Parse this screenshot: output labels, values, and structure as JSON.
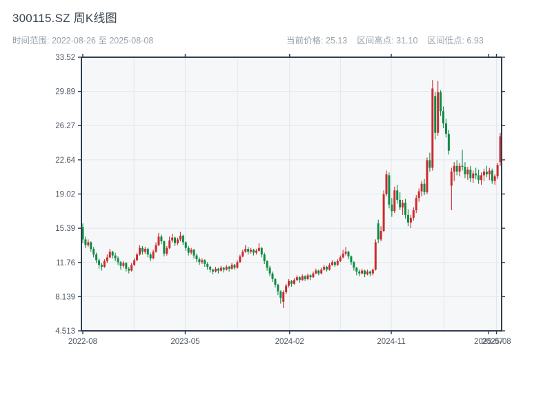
{
  "header": {
    "title": "300115.SZ 周K线图",
    "time_range": "时间范围: 2022-08-26 至 2025-08-08",
    "stats": {
      "current": "当前价格: 25.13",
      "high": "区间高点: 31.10",
      "low": "区间低点: 6.93"
    }
  },
  "chart_data": {
    "type": "candlestick",
    "title": "300115.SZ 周K线图",
    "frequency": "weekly",
    "date_start": "2022-08-26",
    "date_end": "2025-08-08",
    "current_price": 25.13,
    "range_high": 31.1,
    "range_low": 6.93,
    "legend_position": "none",
    "grid": true,
    "ylim": [
      4.513,
      33.52
    ],
    "y_ticks": [
      {
        "label": "33.52",
        "v": 33.52
      },
      {
        "label": "29.89",
        "v": 29.89
      },
      {
        "label": "26.27",
        "v": 26.27
      },
      {
        "label": "22.64",
        "v": 22.64
      },
      {
        "label": "19.02",
        "v": 19.02
      },
      {
        "label": "15.39",
        "v": 15.39
      },
      {
        "label": "11.76",
        "v": 11.76
      },
      {
        "label": "8.139",
        "v": 8.139
      },
      {
        "label": "4.513",
        "v": 4.513
      }
    ],
    "x_ticks": [
      {
        "label": "2022-08",
        "i": 0
      },
      {
        "label": "2023-05",
        "i": 37.8
      },
      {
        "label": "2024-02",
        "i": 76.3
      },
      {
        "label": "2024-11",
        "i": 113.8
      },
      {
        "label": "2025-07",
        "i": 149.7
      },
      {
        "label": "2025-08",
        "i": 152.6
      }
    ],
    "x_gridlines": [
      18.9,
      37.8,
      57.05,
      76.3,
      95.05,
      113.8,
      133.2,
      152.6
    ],
    "colors": {
      "up": "#cb2b2f",
      "down": "#0f8b43",
      "plot_bg": "#f5f7f9",
      "grid": "#e3e7eb",
      "spine": "#2e3d4f",
      "tick_label": "#4f5b68"
    },
    "candles": [
      [
        15.5,
        15.9,
        13.8,
        14.2
      ],
      [
        14.2,
        14.5,
        13.3,
        13.6
      ],
      [
        13.6,
        14.2,
        13.4,
        13.9
      ],
      [
        13.9,
        14.0,
        12.9,
        13.2
      ],
      [
        13.2,
        13.4,
        12.3,
        12.6
      ],
      [
        12.6,
        12.8,
        11.7,
        12.0
      ],
      [
        12.0,
        12.2,
        11.1,
        11.5
      ],
      [
        11.5,
        11.7,
        10.9,
        11.3
      ],
      [
        11.3,
        12.1,
        11.2,
        11.9
      ],
      [
        11.9,
        12.6,
        11.7,
        12.3
      ],
      [
        12.3,
        13.2,
        12.2,
        12.9
      ],
      [
        12.9,
        13.0,
        12.2,
        12.5
      ],
      [
        12.5,
        12.8,
        11.9,
        12.2
      ],
      [
        12.2,
        12.4,
        11.5,
        11.8
      ],
      [
        11.8,
        11.9,
        11.0,
        11.4
      ],
      [
        11.4,
        11.9,
        11.2,
        11.7
      ],
      [
        11.7,
        11.8,
        10.8,
        11.1
      ],
      [
        11.1,
        11.3,
        10.6,
        10.9
      ],
      [
        10.9,
        11.7,
        10.8,
        11.5
      ],
      [
        11.5,
        12.2,
        11.4,
        12.0
      ],
      [
        12.0,
        12.8,
        11.9,
        12.6
      ],
      [
        12.6,
        13.6,
        12.5,
        13.3
      ],
      [
        13.3,
        13.5,
        12.6,
        12.9
      ],
      [
        12.9,
        13.4,
        12.7,
        13.2
      ],
      [
        13.2,
        13.3,
        12.3,
        12.6
      ],
      [
        12.6,
        12.8,
        11.9,
        12.2
      ],
      [
        12.2,
        13.1,
        12.1,
        12.9
      ],
      [
        12.9,
        13.9,
        12.8,
        13.6
      ],
      [
        13.6,
        14.9,
        13.5,
        14.5
      ],
      [
        14.5,
        14.7,
        13.7,
        14.0
      ],
      [
        14.0,
        14.1,
        12.4,
        12.7
      ],
      [
        12.7,
        13.5,
        12.5,
        13.3
      ],
      [
        13.3,
        14.5,
        13.2,
        14.1
      ],
      [
        14.1,
        14.8,
        13.9,
        14.4
      ],
      [
        14.4,
        14.5,
        13.5,
        13.8
      ],
      [
        13.8,
        14.4,
        13.6,
        14.2
      ],
      [
        14.2,
        15.0,
        14.0,
        14.6
      ],
      [
        14.6,
        14.7,
        13.6,
        13.9
      ],
      [
        13.9,
        14.0,
        13.0,
        13.3
      ],
      [
        13.3,
        13.5,
        12.5,
        12.8
      ],
      [
        12.8,
        13.3,
        12.6,
        13.1
      ],
      [
        13.1,
        13.2,
        12.2,
        12.5
      ],
      [
        12.5,
        12.7,
        11.8,
        12.1
      ],
      [
        12.1,
        12.3,
        11.5,
        11.8
      ],
      [
        11.8,
        12.2,
        11.6,
        12.0
      ],
      [
        12.0,
        12.1,
        11.3,
        11.6
      ],
      [
        11.6,
        11.8,
        11.0,
        11.3
      ],
      [
        11.3,
        11.4,
        10.7,
        11.0
      ],
      [
        11.0,
        11.1,
        10.5,
        10.8
      ],
      [
        10.8,
        11.3,
        10.7,
        11.1
      ],
      [
        11.1,
        11.2,
        10.6,
        10.9
      ],
      [
        10.9,
        11.4,
        10.8,
        11.2
      ],
      [
        11.2,
        11.3,
        10.7,
        11.0
      ],
      [
        11.0,
        11.5,
        10.9,
        11.3
      ],
      [
        11.3,
        11.4,
        10.8,
        11.1
      ],
      [
        11.1,
        11.7,
        11.0,
        11.5
      ],
      [
        11.5,
        11.6,
        11.0,
        11.2
      ],
      [
        11.2,
        12.0,
        11.1,
        11.8
      ],
      [
        11.8,
        12.6,
        11.7,
        12.4
      ],
      [
        12.4,
        13.1,
        12.3,
        12.9
      ],
      [
        12.9,
        13.6,
        12.8,
        13.2
      ],
      [
        13.2,
        13.4,
        12.6,
        12.9
      ],
      [
        12.9,
        13.3,
        12.7,
        13.1
      ],
      [
        13.1,
        13.2,
        12.5,
        12.8
      ],
      [
        12.8,
        13.2,
        12.6,
        13.0
      ],
      [
        13.0,
        13.8,
        12.9,
        13.3
      ],
      [
        13.3,
        13.4,
        12.3,
        12.6
      ],
      [
        12.6,
        12.8,
        11.6,
        11.9
      ],
      [
        11.9,
        12.0,
        10.9,
        11.2
      ],
      [
        11.2,
        11.4,
        10.3,
        10.6
      ],
      [
        10.6,
        10.8,
        9.7,
        10.0
      ],
      [
        10.0,
        10.1,
        9.1,
        9.4
      ],
      [
        9.4,
        9.5,
        8.3,
        8.7
      ],
      [
        8.7,
        8.8,
        7.4,
        8.0
      ],
      [
        7.6,
        8.8,
        6.93,
        8.6
      ],
      [
        8.6,
        9.5,
        8.4,
        9.3
      ],
      [
        9.3,
        10.0,
        9.1,
        9.8
      ],
      [
        9.8,
        9.9,
        9.2,
        9.5
      ],
      [
        9.5,
        10.1,
        9.4,
        9.9
      ],
      [
        9.9,
        10.4,
        9.8,
        10.2
      ],
      [
        10.2,
        10.3,
        9.6,
        9.9
      ],
      [
        9.9,
        10.5,
        9.8,
        10.3
      ],
      [
        10.3,
        10.4,
        9.8,
        10.0
      ],
      [
        10.0,
        10.6,
        9.9,
        10.4
      ],
      [
        10.4,
        10.5,
        9.9,
        10.2
      ],
      [
        10.2,
        10.8,
        10.1,
        10.6
      ],
      [
        10.6,
        11.1,
        10.5,
        10.9
      ],
      [
        10.9,
        11.0,
        10.4,
        10.6
      ],
      [
        10.6,
        11.2,
        10.5,
        11.0
      ],
      [
        11.0,
        11.5,
        10.9,
        11.3
      ],
      [
        11.3,
        11.4,
        10.8,
        11.0
      ],
      [
        11.0,
        11.7,
        10.9,
        11.5
      ],
      [
        11.5,
        12.0,
        11.4,
        11.8
      ],
      [
        11.8,
        11.9,
        11.3,
        11.5
      ],
      [
        11.5,
        12.1,
        11.4,
        11.9
      ],
      [
        11.9,
        12.5,
        11.8,
        12.3
      ],
      [
        12.3,
        13.1,
        12.2,
        12.7
      ],
      [
        12.7,
        13.4,
        12.5,
        12.9
      ],
      [
        12.9,
        13.0,
        12.1,
        12.4
      ],
      [
        12.4,
        12.5,
        11.5,
        11.8
      ],
      [
        11.8,
        11.9,
        10.9,
        11.2
      ],
      [
        11.2,
        11.3,
        10.4,
        10.8
      ],
      [
        10.8,
        11.0,
        10.3,
        10.6
      ],
      [
        10.6,
        11.1,
        10.5,
        10.9
      ],
      [
        10.9,
        11.0,
        10.2,
        10.5
      ],
      [
        10.5,
        11.0,
        10.4,
        10.8
      ],
      [
        10.8,
        10.9,
        10.3,
        10.6
      ],
      [
        10.6,
        11.1,
        10.4,
        11.0
      ],
      [
        11.0,
        14.2,
        10.9,
        13.9
      ],
      [
        15.9,
        16.3,
        13.8,
        14.2
      ],
      [
        14.2,
        15.6,
        14.0,
        15.1
      ],
      [
        15.1,
        19.4,
        15.0,
        19.0
      ],
      [
        19.0,
        21.5,
        18.8,
        21.1
      ],
      [
        21.0,
        21.3,
        17.5,
        17.9
      ],
      [
        17.9,
        18.6,
        16.6,
        17.2
      ],
      [
        17.2,
        19.8,
        17.0,
        19.4
      ],
      [
        19.4,
        20.0,
        18.0,
        18.4
      ],
      [
        18.4,
        19.2,
        17.3,
        17.6
      ],
      [
        17.6,
        18.4,
        16.8,
        18.1
      ],
      [
        18.1,
        18.5,
        16.4,
        16.8
      ],
      [
        16.8,
        17.4,
        15.6,
        16.0
      ],
      [
        16.0,
        16.8,
        15.4,
        16.5
      ],
      [
        16.5,
        17.6,
        16.2,
        17.3
      ],
      [
        17.3,
        18.9,
        17.0,
        18.6
      ],
      [
        18.6,
        19.6,
        18.2,
        19.3
      ],
      [
        19.3,
        20.4,
        18.8,
        20.1
      ],
      [
        20.1,
        20.6,
        18.9,
        19.2
      ],
      [
        19.2,
        22.9,
        19.0,
        22.6
      ],
      [
        22.6,
        23.4,
        21.4,
        21.8
      ],
      [
        21.8,
        31.1,
        21.5,
        30.2
      ],
      [
        29.4,
        29.8,
        24.8,
        25.5
      ],
      [
        25.5,
        31.0,
        25.2,
        29.8
      ],
      [
        29.8,
        30.0,
        27.3,
        27.8
      ],
      [
        27.8,
        28.3,
        26.0,
        26.5
      ],
      [
        26.5,
        27.0,
        25.0,
        25.4
      ],
      [
        25.4,
        25.8,
        23.2,
        23.6
      ],
      [
        19.9,
        21.8,
        17.3,
        21.4
      ],
      [
        21.4,
        22.4,
        20.4,
        22.0
      ],
      [
        22.0,
        22.6,
        21.0,
        21.4
      ],
      [
        21.4,
        22.3,
        20.9,
        22.0
      ],
      [
        22.0,
        23.7,
        21.5,
        21.9
      ],
      [
        21.9,
        22.4,
        20.7,
        21.1
      ],
      [
        21.1,
        21.9,
        20.5,
        21.6
      ],
      [
        21.6,
        22.0,
        20.3,
        20.7
      ],
      [
        20.7,
        21.5,
        20.2,
        21.2
      ],
      [
        21.2,
        21.8,
        20.6,
        21.0
      ],
      [
        21.0,
        21.6,
        20.1,
        20.5
      ],
      [
        20.5,
        21.3,
        20.0,
        21.0
      ],
      [
        21.0,
        21.7,
        20.4,
        21.4
      ],
      [
        21.4,
        22.0,
        20.8,
        21.1
      ],
      [
        21.1,
        21.8,
        20.5,
        21.5
      ],
      [
        21.5,
        21.7,
        20.1,
        20.4
      ],
      [
        20.4,
        21.1,
        20.0,
        20.9
      ],
      [
        20.9,
        22.3,
        20.6,
        22.1
      ],
      [
        22.4,
        25.5,
        22.0,
        25.13
      ]
    ]
  }
}
